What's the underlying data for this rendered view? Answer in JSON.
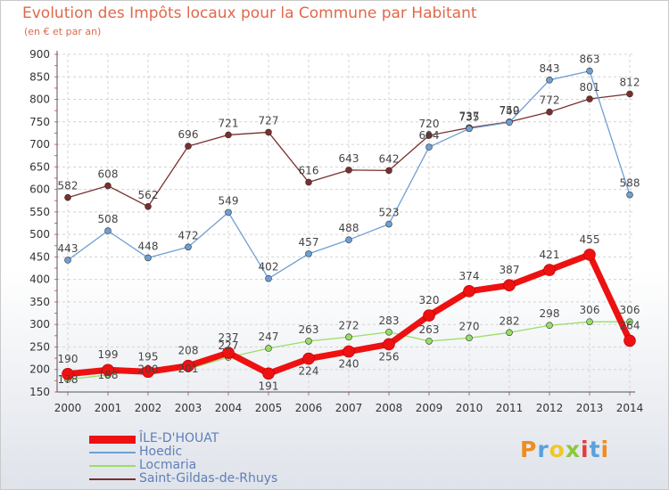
{
  "title": "Evolution des Impôts locaux pour la Commune par Habitant",
  "subtitle": "(en € et par an)",
  "logo_text": "Proxiti",
  "chart_data": {
    "type": "line",
    "title": "Evolution des Impôts locaux pour la Commune par Habitant",
    "subtitle": "(en € et par an)",
    "xlabel": "",
    "ylabel": "",
    "x": [
      "2000",
      "2001",
      "2002",
      "2003",
      "2004",
      "2005",
      "2006",
      "2007",
      "2008",
      "2009",
      "2010",
      "2011",
      "2012",
      "2013",
      "2014"
    ],
    "yticks": [
      "150",
      "200",
      "250",
      "300",
      "350",
      "400",
      "450",
      "500",
      "550",
      "600",
      "650",
      "700",
      "750",
      "800",
      "850",
      "900"
    ],
    "ylim": [
      150,
      900
    ],
    "grid": true,
    "legend_position": "bottom-left",
    "series": [
      {
        "name": "ÎLE-D'HOUAT",
        "color": "#ee1111",
        "values": [
          190,
          199,
          195,
          208,
          237,
          191,
          224,
          240,
          256,
          320,
          374,
          387,
          421,
          455,
          264
        ],
        "labels": [
          "190",
          "199",
          "195",
          "208",
          "237",
          "191",
          "224",
          "240",
          "256",
          "320",
          "374",
          "387",
          "421",
          "455",
          "264"
        ]
      },
      {
        "name": "Hoedic",
        "color": "#6e9fd3",
        "values": [
          443,
          508,
          448,
          472,
          549,
          402,
          457,
          488,
          523,
          694,
          735,
          749,
          843,
          863,
          588
        ],
        "labels": [
          "443",
          "508",
          "448",
          "472",
          "549",
          "402",
          "457",
          "488",
          "523",
          "694",
          "735",
          "749",
          "843",
          "863",
          "588"
        ]
      },
      {
        "name": "Locmaria",
        "color": "#99dd66",
        "values": [
          178,
          188,
          200,
          201,
          227,
          247,
          263,
          272,
          283,
          263,
          270,
          282,
          298,
          306,
          306
        ],
        "labels": [
          "178",
          "188",
          "200",
          "201",
          "227",
          "247",
          "263",
          "272",
          "283",
          "263",
          "270",
          "282",
          "298",
          "306",
          "306"
        ]
      },
      {
        "name": "Saint-Gildas-de-Rhuys",
        "color": "#7a2f2f",
        "values": [
          582,
          608,
          562,
          696,
          721,
          727,
          616,
          643,
          642,
          720,
          737,
          750,
          772,
          801,
          812
        ],
        "labels": [
          "582",
          "608",
          "562",
          "696",
          "721",
          "727",
          "616",
          "643",
          "642",
          "720",
          "737",
          "750",
          "772",
          "801",
          "812"
        ]
      }
    ]
  }
}
